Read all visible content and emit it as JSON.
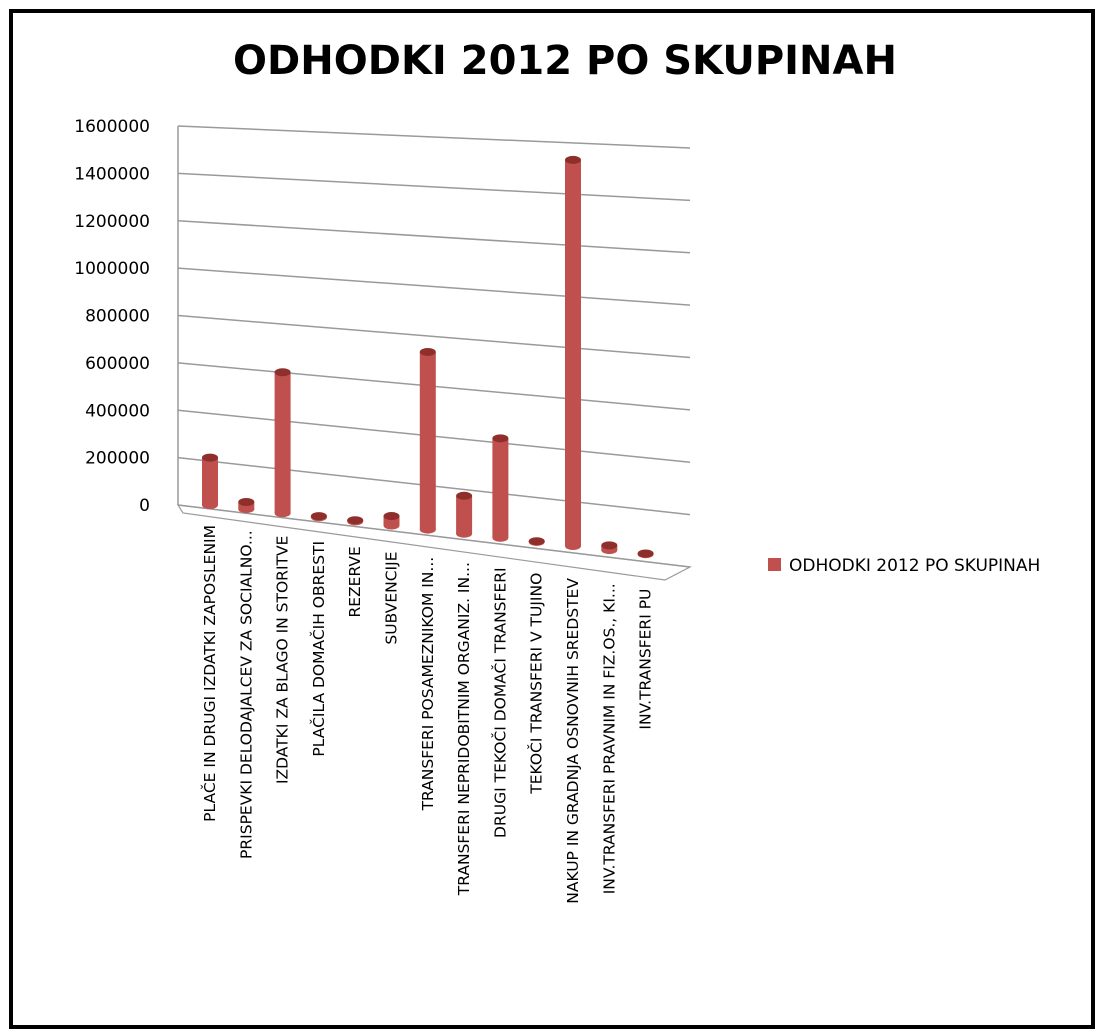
{
  "chart_data": {
    "type": "bar",
    "title": "ODHODKI 2012 PO SKUPINAH",
    "xlabel": "",
    "ylabel": "",
    "ylim": [
      0,
      1600000
    ],
    "yticks": [
      "0",
      "200000",
      "400000",
      "600000",
      "800000",
      "1000000",
      "1200000",
      "1400000",
      "1600000"
    ],
    "grid": true,
    "legend_position": "right",
    "categories": [
      "PLAČE IN DRUGI IZDATKI ZAPOSLENIM",
      "PRISPEVKI DELODAJALCEV ZA SOCIALNO...",
      "IZDATKI ZA BLAGO IN STORITVE",
      "PLAČILA DOMAČIH OBRESTI",
      "REZERVE",
      "SUBVENCIJE",
      "TRANSFERI POSAMEZNIKOM IN...",
      "TRANSFERI NEPRIDOBITNIM ORGANIZ. IN...",
      "DRUGI TEKOČI DOMAČI TRANSFERI",
      "TEKOČI TRANSFERI V TUJINO",
      "NAKUP IN GRADNJA OSNOVNIH SREDSTEV",
      "INV.TRANSFERI PRAVNIM IN FIZ.OS., KI...",
      "INV.TRANSFERI PU"
    ],
    "series": [
      {
        "name": "ODHODKI 2012 PO SKUPINAH",
        "color": "#c0504d",
        "values": [
          200000,
          30000,
          595000,
          5000,
          5000,
          40000,
          750000,
          160000,
          420000,
          3000,
          1630000,
          20000,
          3000
        ]
      }
    ]
  }
}
